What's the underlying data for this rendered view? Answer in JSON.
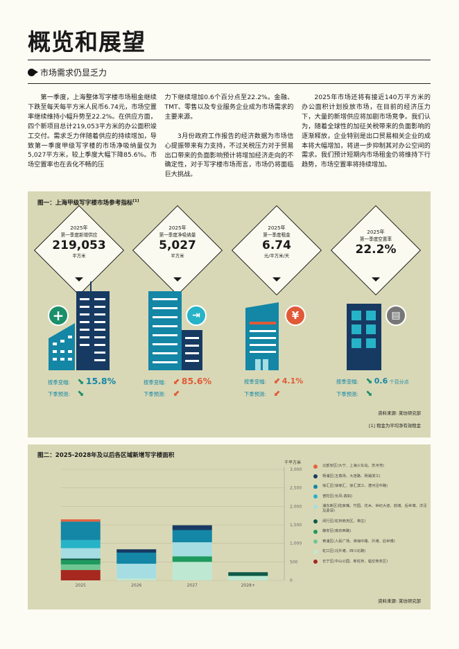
{
  "page": {
    "title": "概览和展望",
    "section_heading": "市场需求仍显乏力"
  },
  "body_text": {
    "col1": "第一季度，上海整体写字楼市场租金继续下跌至每天每平方米人民币6.74元，市场空置率继续维持小幅升势至22.2%。在供应方面，四个新项目总计219,053平方米的办公面积竣工交付。需求乏力伴随着供应的持续增加，导致第一季度甲级写字楼的市场净吸纳量仅为5,027平方米，较上季度大幅下降85.6%。市场空置率也在去化不畅的压",
    "col2_p1": "力下继续增加0.6个百分点至22.2%。金融、TMT、零售以及专业服务企业成为市场需求的主要来源。",
    "col2_p2": "3月份政府工作报告的经济数据为市场信心提振带来有力支持，不过关税压力对于贸易出口带来的负面影响预计将增加经济走向的不确定性，对于写字楼市场而言，市场仍将面临巨大挑战。",
    "col3": "2025年市场还将有接近140万平方米的办公面积计划投放市场，在目前的经济压力下，大量的新增供应将加剧市场竞争。我们认为，随着全球性的加征关税带来的负面影响的逐渐释放，企业特别是出口贸易相关企业的成本将大幅增加，将进一步抑制其对办公空间的需求。我们预计短期内市场租金仍将维持下行趋势，市场空置率将持续增加。"
  },
  "figure1": {
    "title": "图一：上海甲级写字楼市场参考指标",
    "title_sup": "[1]",
    "indicators": [
      {
        "year": "2025年",
        "label": "第一季度新增供应",
        "value": "219,053",
        "unit": "平方米",
        "qoq_label": "按季变幅:",
        "qoq_value": "15.8%",
        "qoq_unit": "",
        "forecast_label": "下季预测:",
        "color": "#1b8f6a",
        "icon": "plus-icon",
        "icon_glyph": "+"
      },
      {
        "year": "2025年",
        "label": "第一季度净吸纳量",
        "value": "5,027",
        "unit": "平方米",
        "qoq_label": "按季变幅:",
        "qoq_value": "85.6%",
        "qoq_unit": "",
        "forecast_label": "下季预测:",
        "color": "#e05a38",
        "icon": "door-exit-icon",
        "icon_glyph": "⇥"
      },
      {
        "year": "2025年",
        "label": "第一季度租金",
        "value": "6.74",
        "unit": "元/平方米/天",
        "qoq_label": "按季变幅:",
        "qoq_value": "4.1%",
        "qoq_unit": "",
        "forecast_label": "下季预测:",
        "color": "#e05a38",
        "icon": "yuan-icon",
        "icon_glyph": "¥"
      },
      {
        "year": "2025年",
        "label": "第一季度空置率",
        "value": "22.2%",
        "unit": "",
        "qoq_label": "按季变幅:",
        "qoq_value": "0.6",
        "qoq_unit": "个百分点",
        "forecast_label": "下季预测:",
        "color": "#1b8f6a",
        "icon": "vacant-office-icon",
        "icon_glyph": "▤"
      }
    ],
    "source": "资料来源: 莱坊研究部",
    "footnote": "[1] 租金为平均净有效租金"
  },
  "figure2": {
    "title": "图二：2025-2028年及以后各区域新增写字楼面积",
    "y_unit": "千平方米",
    "source": "资料来源: 莱坊研究部"
  },
  "chart_data": {
    "type": "bar",
    "stacked": true,
    "title": "图二：2025-2028年及以后各区域新增写字楼面积",
    "ylabel": "千平方米",
    "ylim": [
      0,
      3000
    ],
    "yticks": [
      0,
      500,
      1000,
      1500,
      2000,
      2500,
      3000
    ],
    "grid": true,
    "legend_position": "right",
    "categories": [
      "2025",
      "2026",
      "2027",
      "2028+"
    ],
    "series": [
      {
        "name": "长宁区(中山公园、新虹桥、临空商务区)",
        "color": "#a6281e",
        "values": [
          280,
          0,
          0,
          0
        ]
      },
      {
        "name": "虹口区(北外滩、四川北路)",
        "color": "#bfe8d2",
        "values": [
          0,
          50,
          500,
          120
        ]
      },
      {
        "name": "黄浦区(人民广场、淮海中路、外滩、后世博)",
        "color": "#6fc794",
        "values": [
          150,
          0,
          0,
          0
        ]
      },
      {
        "name": "静安区(南京西路)",
        "color": "#1e9a5e",
        "values": [
          120,
          0,
          150,
          0
        ]
      },
      {
        "name": "闵行区(虹桥商务区、莘庄)",
        "color": "#0f5a48",
        "values": [
          40,
          0,
          0,
          100
        ]
      },
      {
        "name": "浦东新区(陆家嘴、竹园、花木、世纪大道、前滩、后世博、洋泾及源深)",
        "color": "#a5dde3",
        "values": [
          280,
          400,
          380,
          0
        ]
      },
      {
        "name": "普陀区(长风-真如)",
        "color": "#27b3c7",
        "values": [
          220,
          0,
          0,
          0
        ]
      },
      {
        "name": "徐汇区(徐家汇、徐汇滨江、漕河泾中路)",
        "color": "#1486a6",
        "values": [
          500,
          300,
          330,
          0
        ]
      },
      {
        "name": "杨浦区(五角场、大连路、杨浦滨江)",
        "color": "#173a63",
        "values": [
          0,
          90,
          130,
          0
        ]
      },
      {
        "name": "北部安区(大宁、上海火车站、苏河湾)",
        "color": "#e5633f",
        "values": [
          60,
          0,
          0,
          0
        ]
      }
    ]
  },
  "colors": {
    "panel_bg": "#d9d8b6",
    "navy": "#173a63",
    "teal": "#1486a6",
    "orange": "#e05a38",
    "green": "#1b8f6a"
  }
}
